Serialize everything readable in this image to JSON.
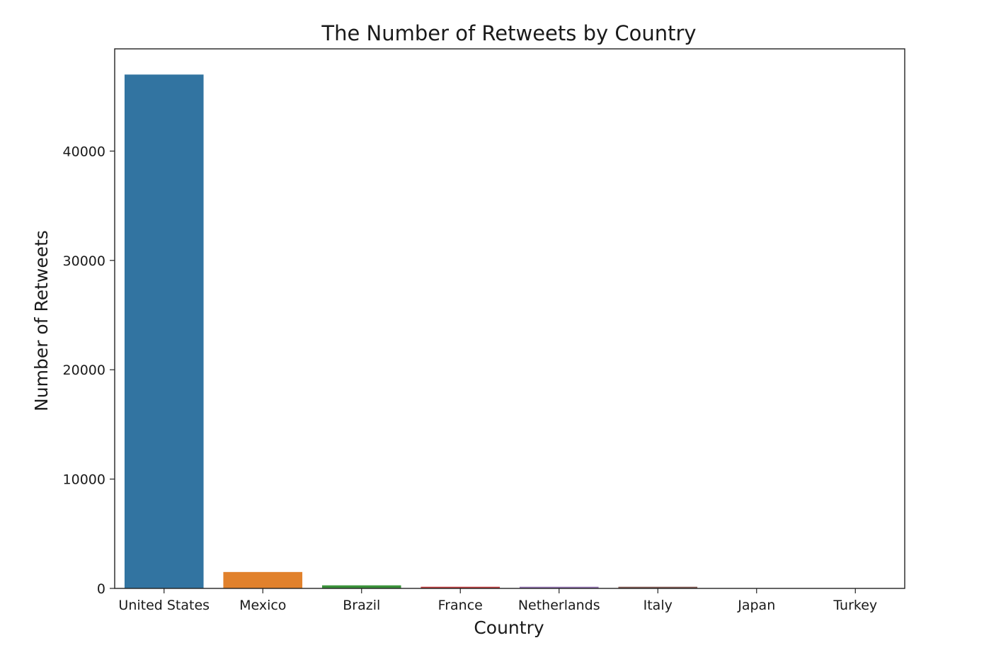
{
  "chart_data": {
    "type": "bar",
    "title": "The Number of Retweets by Country",
    "xlabel": "Country",
    "ylabel": "Number of Retweets",
    "categories": [
      "United States",
      "Mexico",
      "Brazil",
      "France",
      "Netherlands",
      "Italy",
      "Japan",
      "Turkey"
    ],
    "values": [
      47000,
      1500,
      280,
      150,
      150,
      150,
      20,
      10
    ],
    "colors": [
      "#3274a1",
      "#e1812c",
      "#3a923a",
      "#c03d3e",
      "#9372b2",
      "#845b53",
      "#d684bd",
      "#7f7f7f"
    ],
    "yticks": [
      0,
      10000,
      20000,
      30000,
      40000
    ],
    "ylim": [
      0,
      49350
    ],
    "grid": false,
    "legend": "none"
  }
}
